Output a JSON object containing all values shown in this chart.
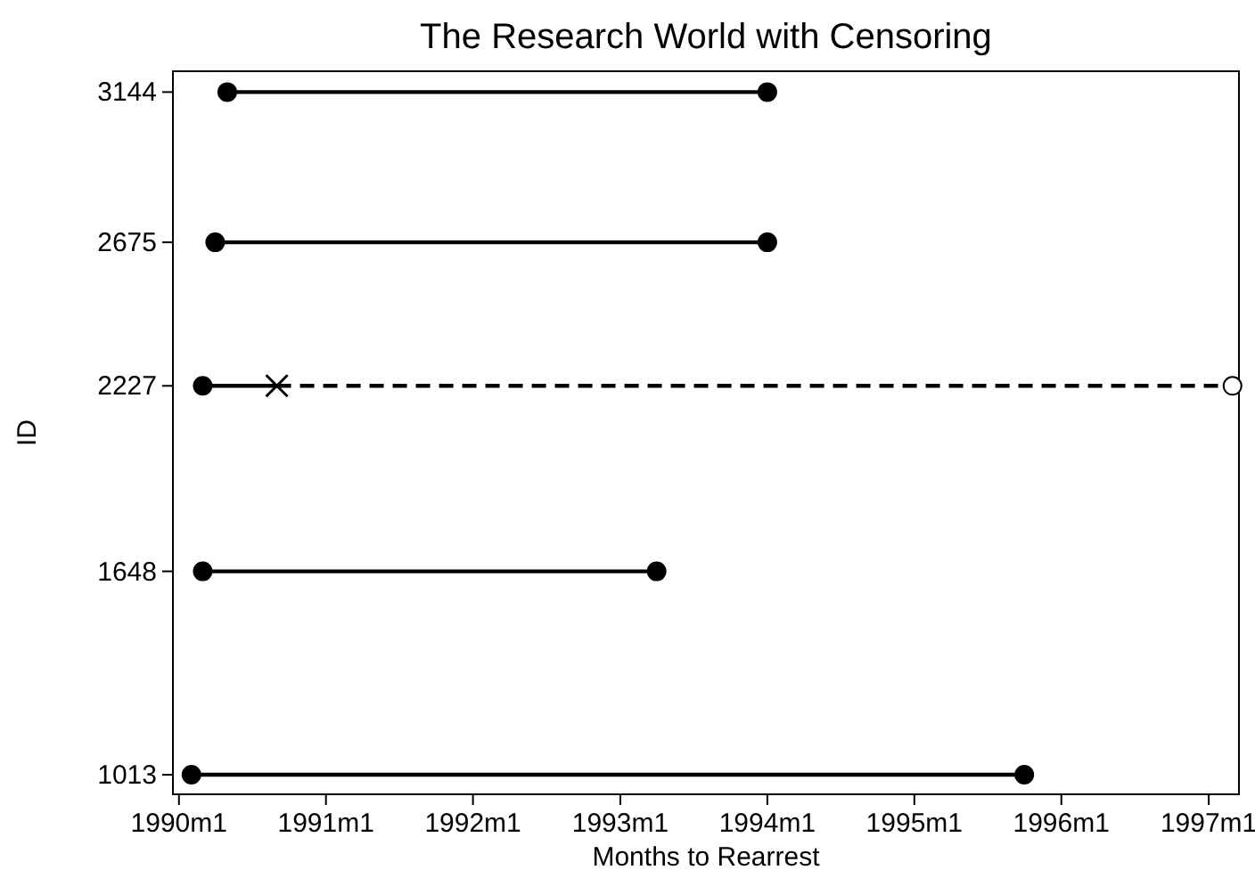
{
  "chart_data": {
    "type": "line",
    "title": "The Research World with Censoring",
    "xlabel": "Months to Rearrest",
    "ylabel": "ID",
    "xlim": [
      "1989-12-17",
      "1997-03-17"
    ],
    "xticks": [
      {
        "value": "1990-01",
        "label": "1990m1"
      },
      {
        "value": "1991-01",
        "label": "1991m1"
      },
      {
        "value": "1992-01",
        "label": "1992m1"
      },
      {
        "value": "1993-01",
        "label": "1993m1"
      },
      {
        "value": "1994-01",
        "label": "1994m1"
      },
      {
        "value": "1995-01",
        "label": "1995m1"
      },
      {
        "value": "1996-01",
        "label": "1996m1"
      },
      {
        "value": "1997-01",
        "label": "1997m1"
      }
    ],
    "ylim": [
      952,
      3209
    ],
    "yticks": [
      1013,
      1648,
      2227,
      2675,
      3144
    ],
    "grid": false,
    "series": [
      {
        "color": "#000000",
        "line_style": "solid",
        "marker": "none",
        "x": [
          "1990-05",
          "1994-01"
        ],
        "values": [
          3144,
          3144
        ]
      },
      {
        "color": "#000000",
        "line_style": "solid",
        "marker": "none",
        "x": [
          "1990-04",
          "1994-01"
        ],
        "values": [
          2675,
          2675
        ]
      },
      {
        "color": "#000000",
        "line_style": "solid",
        "marker": "none",
        "x": [
          "1990-03",
          "1990-09"
        ],
        "values": [
          2227,
          2227
        ]
      },
      {
        "color": "#000000",
        "line_style": "dashed",
        "marker": "none",
        "x": [
          "1990-09",
          "1997-03"
        ],
        "values": [
          2227,
          2227
        ]
      },
      {
        "color": "#000000",
        "line_style": "solid",
        "marker": "none",
        "x": [
          "1990-03",
          "1993-04"
        ],
        "values": [
          1648,
          1648
        ]
      },
      {
        "color": "#000000",
        "line_style": "solid",
        "marker": "none",
        "x": [
          "1990-02",
          "1995-10"
        ],
        "values": [
          1013,
          1013
        ]
      },
      {
        "type": "scatter",
        "color": "#000000",
        "marker": "circle",
        "x": [
          "1990-05",
          "1994-01",
          "1990-04",
          "1994-01",
          "1990-03",
          "1990-03",
          "1993-04",
          "1990-02",
          "1995-10"
        ],
        "values": [
          3144,
          3144,
          2675,
          2675,
          2227,
          1648,
          1648,
          1013,
          1013
        ]
      },
      {
        "type": "scatter",
        "color": "#000000",
        "marker": "cross",
        "x": [
          "1990-09"
        ],
        "values": [
          2227
        ]
      },
      {
        "type": "scatter",
        "color": "#ffffff",
        "marker": "circle",
        "x": [
          "1997-03"
        ],
        "values": [
          2227
        ]
      }
    ]
  }
}
